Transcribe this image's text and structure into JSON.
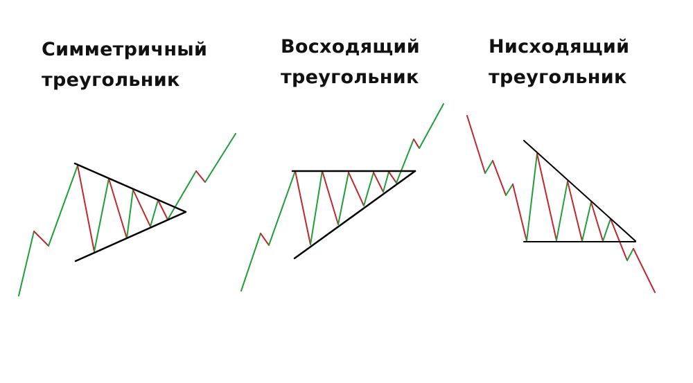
{
  "panels": [
    {
      "title_line1": "Симметричный",
      "title_line2": "треугольник"
    },
    {
      "title_line1": "Восходящий",
      "title_line2": "треугольник"
    },
    {
      "title_line1": "Нисходящий",
      "title_line2": "треугольник"
    }
  ],
  "colors": {
    "up": "#1e9e3a",
    "down": "#c0262c",
    "trendline": "#000000"
  }
}
